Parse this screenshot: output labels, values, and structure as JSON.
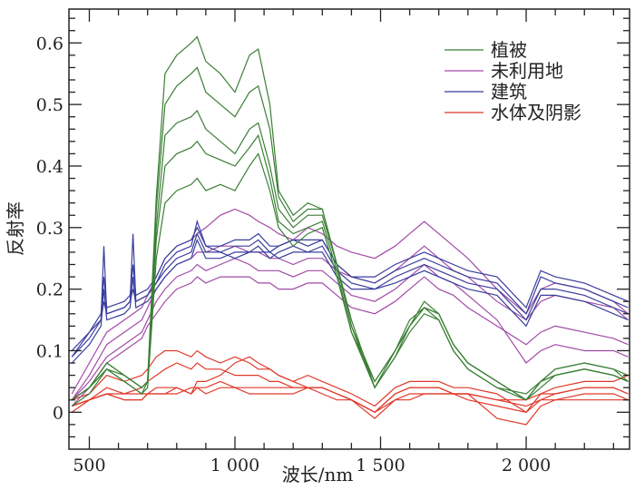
{
  "chart_data": {
    "type": "line",
    "title": "",
    "xlabel": "波长/nm",
    "ylabel": "反射率",
    "xlim": [
      430,
      2355
    ],
    "ylim": [
      -0.06,
      0.655
    ],
    "x_ticks": [
      500,
      1000,
      1500,
      2000
    ],
    "x_tick_labels": [
      "500",
      "1 000",
      "1 500",
      "2 000"
    ],
    "y_ticks": [
      0,
      0.1,
      0.2,
      0.3,
      0.4,
      0.5,
      0.6
    ],
    "y_tick_labels": [
      "0",
      "0.1",
      "0.2",
      "0.3",
      "0.4",
      "0.5",
      "0.6"
    ],
    "grid": false,
    "legend_position": "top-right",
    "classes": [
      {
        "name": "植被",
        "color": "#3b7f35",
        "x": [
          440,
          500,
          560,
          620,
          680,
          700,
          730,
          760,
          800,
          850,
          870,
          900,
          950,
          1000,
          1050,
          1080,
          1120,
          1150,
          1200,
          1250,
          1300,
          1350,
          1400,
          1480,
          1550,
          1600,
          1650,
          1700,
          1750,
          1800,
          1900,
          2000,
          2050,
          2100,
          2200,
          2300,
          2350
        ],
        "series": [
          [
            0.02,
            0.04,
            0.08,
            0.06,
            0.04,
            0.05,
            0.35,
            0.55,
            0.58,
            0.6,
            0.61,
            0.57,
            0.55,
            0.52,
            0.58,
            0.59,
            0.5,
            0.36,
            0.32,
            0.34,
            0.33,
            0.24,
            0.15,
            0.04,
            0.1,
            0.15,
            0.17,
            0.16,
            0.11,
            0.08,
            0.05,
            0.02,
            0.05,
            0.06,
            0.07,
            0.06,
            0.05
          ],
          [
            0.02,
            0.04,
            0.08,
            0.06,
            0.04,
            0.05,
            0.33,
            0.5,
            0.53,
            0.55,
            0.56,
            0.52,
            0.5,
            0.48,
            0.52,
            0.53,
            0.46,
            0.35,
            0.31,
            0.33,
            0.33,
            0.24,
            0.14,
            0.04,
            0.09,
            0.14,
            0.17,
            0.16,
            0.11,
            0.08,
            0.05,
            0.02,
            0.05,
            0.07,
            0.08,
            0.07,
            0.05
          ],
          [
            0.02,
            0.04,
            0.07,
            0.06,
            0.04,
            0.05,
            0.3,
            0.45,
            0.47,
            0.48,
            0.49,
            0.46,
            0.44,
            0.42,
            0.46,
            0.47,
            0.4,
            0.33,
            0.3,
            0.32,
            0.32,
            0.24,
            0.14,
            0.05,
            0.1,
            0.14,
            0.18,
            0.16,
            0.11,
            0.08,
            0.05,
            0.02,
            0.05,
            0.07,
            0.08,
            0.07,
            0.06
          ],
          [
            0.01,
            0.03,
            0.07,
            0.05,
            0.03,
            0.05,
            0.28,
            0.4,
            0.42,
            0.43,
            0.44,
            0.42,
            0.41,
            0.4,
            0.43,
            0.45,
            0.38,
            0.31,
            0.29,
            0.3,
            0.31,
            0.23,
            0.13,
            0.04,
            0.09,
            0.13,
            0.16,
            0.15,
            0.1,
            0.07,
            0.04,
            0.02,
            0.04,
            0.06,
            0.07,
            0.06,
            0.05
          ],
          [
            0.02,
            0.04,
            0.07,
            0.05,
            0.03,
            0.04,
            0.25,
            0.34,
            0.36,
            0.37,
            0.38,
            0.36,
            0.37,
            0.36,
            0.4,
            0.42,
            0.36,
            0.3,
            0.27,
            0.29,
            0.3,
            0.22,
            0.13,
            0.05,
            0.1,
            0.14,
            0.17,
            0.15,
            0.1,
            0.07,
            0.04,
            0.03,
            0.05,
            0.06,
            0.07,
            0.06,
            0.05
          ]
        ]
      },
      {
        "name": "未利用地",
        "color": "#a24aa8",
        "x": [
          440,
          500,
          560,
          620,
          680,
          700,
          730,
          760,
          800,
          850,
          870,
          900,
          950,
          1000,
          1050,
          1080,
          1120,
          1150,
          1200,
          1250,
          1300,
          1350,
          1400,
          1480,
          1550,
          1600,
          1650,
          1700,
          1750,
          1800,
          1900,
          2000,
          2050,
          2100,
          2200,
          2300,
          2350
        ],
        "series": [
          [
            0.03,
            0.08,
            0.13,
            0.15,
            0.17,
            0.19,
            0.22,
            0.25,
            0.27,
            0.28,
            0.29,
            0.3,
            0.32,
            0.33,
            0.32,
            0.31,
            0.3,
            0.29,
            0.28,
            0.3,
            0.29,
            0.27,
            0.26,
            0.25,
            0.27,
            0.29,
            0.31,
            0.29,
            0.27,
            0.25,
            0.2,
            0.16,
            0.2,
            0.21,
            0.2,
            0.18,
            0.16
          ],
          [
            0.02,
            0.06,
            0.11,
            0.13,
            0.15,
            0.17,
            0.2,
            0.22,
            0.24,
            0.25,
            0.26,
            0.26,
            0.27,
            0.27,
            0.26,
            0.26,
            0.25,
            0.25,
            0.24,
            0.25,
            0.25,
            0.23,
            0.22,
            0.21,
            0.23,
            0.25,
            0.27,
            0.25,
            0.23,
            0.22,
            0.18,
            0.15,
            0.18,
            0.19,
            0.18,
            0.17,
            0.15
          ],
          [
            0.02,
            0.05,
            0.09,
            0.11,
            0.13,
            0.15,
            0.18,
            0.2,
            0.22,
            0.23,
            0.24,
            0.23,
            0.24,
            0.25,
            0.24,
            0.23,
            0.23,
            0.23,
            0.22,
            0.23,
            0.23,
            0.21,
            0.19,
            0.18,
            0.2,
            0.22,
            0.24,
            0.22,
            0.21,
            0.19,
            0.15,
            0.08,
            0.1,
            0.11,
            0.1,
            0.1,
            0.09
          ],
          [
            0.01,
            0.04,
            0.08,
            0.1,
            0.12,
            0.14,
            0.16,
            0.18,
            0.2,
            0.21,
            0.22,
            0.21,
            0.22,
            0.22,
            0.22,
            0.21,
            0.21,
            0.2,
            0.2,
            0.21,
            0.21,
            0.19,
            0.17,
            0.16,
            0.18,
            0.2,
            0.22,
            0.2,
            0.19,
            0.17,
            0.14,
            0.11,
            0.13,
            0.14,
            0.13,
            0.12,
            0.11
          ]
        ]
      },
      {
        "name": "建筑",
        "color": "#3a3f9c",
        "x": [
          440,
          500,
          540,
          550,
          560,
          620,
          640,
          650,
          660,
          700,
          730,
          760,
          800,
          850,
          870,
          900,
          950,
          1000,
          1050,
          1080,
          1120,
          1150,
          1200,
          1250,
          1300,
          1350,
          1400,
          1480,
          1550,
          1600,
          1650,
          1700,
          1750,
          1800,
          1900,
          2000,
          2050,
          2100,
          2200,
          2300,
          2350
        ],
        "series": [
          [
            0.09,
            0.13,
            0.15,
            0.27,
            0.16,
            0.17,
            0.18,
            0.29,
            0.18,
            0.19,
            0.21,
            0.24,
            0.26,
            0.27,
            0.31,
            0.27,
            0.26,
            0.27,
            0.27,
            0.28,
            0.26,
            0.27,
            0.28,
            0.27,
            0.28,
            0.24,
            0.22,
            0.21,
            0.23,
            0.24,
            0.25,
            0.24,
            0.23,
            0.22,
            0.21,
            0.16,
            0.22,
            0.21,
            0.2,
            0.18,
            0.17
          ],
          [
            0.08,
            0.11,
            0.14,
            0.2,
            0.15,
            0.16,
            0.17,
            0.22,
            0.17,
            0.18,
            0.2,
            0.22,
            0.24,
            0.25,
            0.28,
            0.25,
            0.25,
            0.26,
            0.26,
            0.27,
            0.25,
            0.26,
            0.27,
            0.26,
            0.27,
            0.23,
            0.21,
            0.2,
            0.22,
            0.23,
            0.24,
            0.23,
            0.22,
            0.21,
            0.2,
            0.15,
            0.2,
            0.2,
            0.19,
            0.17,
            0.16
          ],
          [
            0.09,
            0.12,
            0.15,
            0.18,
            0.16,
            0.17,
            0.18,
            0.2,
            0.18,
            0.19,
            0.21,
            0.23,
            0.25,
            0.26,
            0.29,
            0.26,
            0.26,
            0.25,
            0.26,
            0.26,
            0.26,
            0.25,
            0.26,
            0.26,
            0.26,
            0.22,
            0.2,
            0.2,
            0.21,
            0.22,
            0.23,
            0.22,
            0.21,
            0.2,
            0.19,
            0.14,
            0.19,
            0.19,
            0.18,
            0.16,
            0.15
          ],
          [
            0.1,
            0.13,
            0.16,
            0.22,
            0.17,
            0.18,
            0.19,
            0.24,
            0.19,
            0.2,
            0.22,
            0.25,
            0.27,
            0.28,
            0.3,
            0.27,
            0.27,
            0.28,
            0.28,
            0.29,
            0.27,
            0.27,
            0.28,
            0.28,
            0.28,
            0.24,
            0.22,
            0.22,
            0.24,
            0.25,
            0.26,
            0.25,
            0.24,
            0.23,
            0.22,
            0.17,
            0.23,
            0.22,
            0.21,
            0.19,
            0.18
          ]
        ]
      },
      {
        "name": "水体及阴影",
        "color": "#e0392a",
        "x": [
          440,
          500,
          560,
          620,
          680,
          700,
          730,
          760,
          800,
          850,
          870,
          900,
          950,
          1000,
          1050,
          1080,
          1120,
          1150,
          1200,
          1250,
          1300,
          1350,
          1400,
          1480,
          1550,
          1600,
          1650,
          1700,
          1750,
          1800,
          1900,
          2000,
          2050,
          2100,
          2200,
          2300,
          2350
        ],
        "series": [
          [
            0.02,
            0.03,
            0.06,
            0.05,
            0.06,
            0.07,
            0.09,
            0.1,
            0.1,
            0.09,
            0.1,
            0.09,
            0.08,
            0.09,
            0.08,
            0.07,
            0.07,
            0.06,
            0.05,
            0.06,
            0.05,
            0.04,
            0.03,
            0.01,
            0.04,
            0.05,
            0.05,
            0.05,
            0.04,
            0.04,
            0.03,
            0.0,
            0.03,
            0.04,
            0.05,
            0.05,
            0.06
          ],
          [
            0.01,
            0.02,
            0.04,
            0.03,
            0.04,
            0.05,
            0.06,
            0.07,
            0.08,
            0.07,
            0.08,
            0.07,
            0.07,
            0.06,
            0.06,
            0.06,
            0.05,
            0.05,
            0.04,
            0.04,
            0.04,
            0.03,
            0.02,
            0.0,
            0.03,
            0.04,
            0.04,
            0.04,
            0.03,
            0.03,
            0.02,
            0.01,
            0.02,
            0.03,
            0.04,
            0.04,
            0.03
          ],
          [
            0.01,
            0.02,
            0.03,
            0.03,
            0.03,
            0.03,
            0.04,
            0.04,
            0.04,
            0.03,
            0.05,
            0.05,
            0.06,
            0.08,
            0.09,
            0.08,
            0.07,
            0.06,
            0.05,
            0.04,
            0.04,
            0.03,
            0.02,
            0.0,
            0.03,
            0.04,
            0.04,
            0.04,
            0.03,
            0.03,
            0.02,
            0.02,
            0.03,
            0.03,
            0.04,
            0.04,
            0.03
          ],
          [
            0.0,
            0.02,
            0.03,
            0.02,
            0.02,
            0.03,
            0.03,
            0.03,
            0.03,
            0.04,
            0.04,
            0.04,
            0.05,
            0.04,
            0.03,
            0.03,
            0.03,
            0.03,
            0.03,
            0.04,
            0.03,
            0.02,
            0.02,
            -0.01,
            0.02,
            0.03,
            0.03,
            0.03,
            0.03,
            0.02,
            0.01,
            0.0,
            0.02,
            0.02,
            0.03,
            0.03,
            0.02
          ],
          [
            0.01,
            0.02,
            0.03,
            0.02,
            0.02,
            0.03,
            0.03,
            0.03,
            0.04,
            0.03,
            0.04,
            0.03,
            0.04,
            0.04,
            0.04,
            0.04,
            0.04,
            0.04,
            0.04,
            0.04,
            0.04,
            0.03,
            0.02,
            0.0,
            0.02,
            0.02,
            0.03,
            0.03,
            0.03,
            0.03,
            -0.01,
            -0.02,
            0.01,
            0.02,
            0.02,
            0.02,
            0.02
          ]
        ]
      }
    ]
  }
}
